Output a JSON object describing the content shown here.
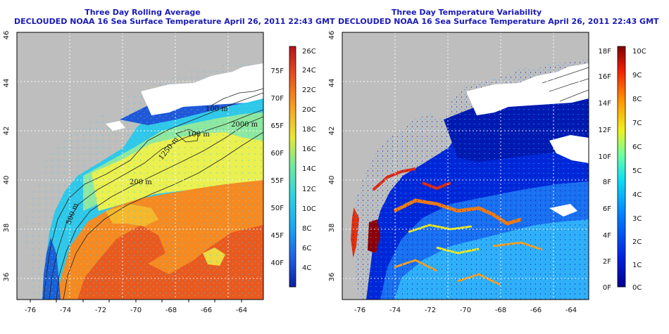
{
  "left": {
    "title": "Three Day Rolling Average",
    "subtitle": "DECLOUDED NOAA 16 Sea Surface Temperature April 26, 2011 22:43 GMT",
    "colorbar_c": [
      "26C",
      "24C",
      "22C",
      "20C",
      "18C",
      "16C",
      "14C",
      "12C",
      "10C",
      "8C",
      "6C",
      "4C"
    ],
    "colorbar_f": [
      "75F",
      "70F",
      "65F",
      "60F",
      "55F",
      "50F",
      "45F",
      "40F"
    ],
    "contours": [
      "100 m",
      "2000 m",
      "100 m",
      "1250 m",
      "200 m",
      "500 m"
    ]
  },
  "right": {
    "title": "Three Day Temperature Variability",
    "subtitle": "DECLOUDED NOAA 16 Sea Surface Temperature April 26, 2011 22:43 GMT",
    "colorbar_f": [
      "18F",
      "16F",
      "14F",
      "12F",
      "10F",
      "8F",
      "6F",
      "4F",
      "2F",
      "0F"
    ],
    "colorbar_c": [
      "10C",
      "9C",
      "8C",
      "7C",
      "6C",
      "5C",
      "4C",
      "3C",
      "2C",
      "1C",
      "0C"
    ]
  },
  "axes": {
    "lon_ticks": [
      "-76",
      "-74",
      "-72",
      "-70",
      "-68",
      "-66",
      "-64"
    ],
    "lat_ticks": [
      "46",
      "44",
      "42",
      "40",
      "38",
      "36"
    ]
  },
  "colors": {
    "title": "#1a1ab8",
    "land": "#bebebe",
    "cloud": "#ffffff"
  }
}
